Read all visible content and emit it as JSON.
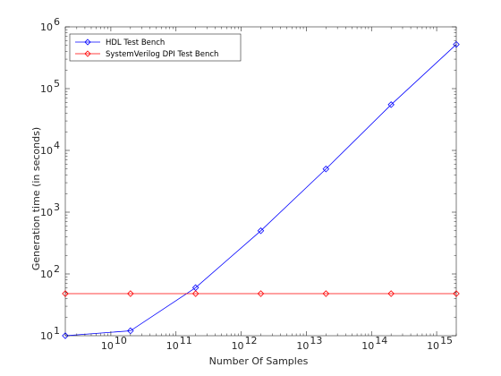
{
  "chart_data": {
    "type": "line",
    "title": "",
    "xlabel": "Number Of Samples",
    "ylabel": "Generation time (in seconds)",
    "xscale": "log",
    "yscale": "log",
    "xlim": [
      2000000000,
      2000000000000000
    ],
    "ylim": [
      10,
      1000000
    ],
    "legend_position": "top-left",
    "x_ticks": [
      {
        "value": 10000000000,
        "base": "10",
        "exp": "10"
      },
      {
        "value": 100000000000,
        "base": "10",
        "exp": "11"
      },
      {
        "value": 1000000000000,
        "base": "10",
        "exp": "12"
      },
      {
        "value": 10000000000000,
        "base": "10",
        "exp": "13"
      },
      {
        "value": 100000000000000,
        "base": "10",
        "exp": "14"
      },
      {
        "value": 1000000000000000,
        "base": "10",
        "exp": "15"
      }
    ],
    "y_ticks": [
      {
        "value": 10,
        "base": "10",
        "exp": "1"
      },
      {
        "value": 100,
        "base": "10",
        "exp": "2"
      },
      {
        "value": 1000,
        "base": "10",
        "exp": "3"
      },
      {
        "value": 10000,
        "base": "10",
        "exp": "4"
      },
      {
        "value": 100000,
        "base": "10",
        "exp": "5"
      },
      {
        "value": 1000000,
        "base": "10",
        "exp": "6"
      }
    ],
    "x": [
      2000000000,
      20000000000,
      200000000000,
      2000000000000,
      20000000000000,
      200000000000000,
      2000000000000000
    ],
    "series": [
      {
        "name": "HDL Test Bench",
        "color": "#0000ff",
        "marker": "diamond",
        "values": [
          10,
          12,
          60,
          500,
          5000,
          55000,
          520000
        ]
      },
      {
        "name": "SystemVerilog DPI Test Bench",
        "color": "#ff0000",
        "marker": "diamond",
        "values": [
          48,
          48,
          48,
          48,
          48,
          48,
          48
        ]
      }
    ]
  }
}
